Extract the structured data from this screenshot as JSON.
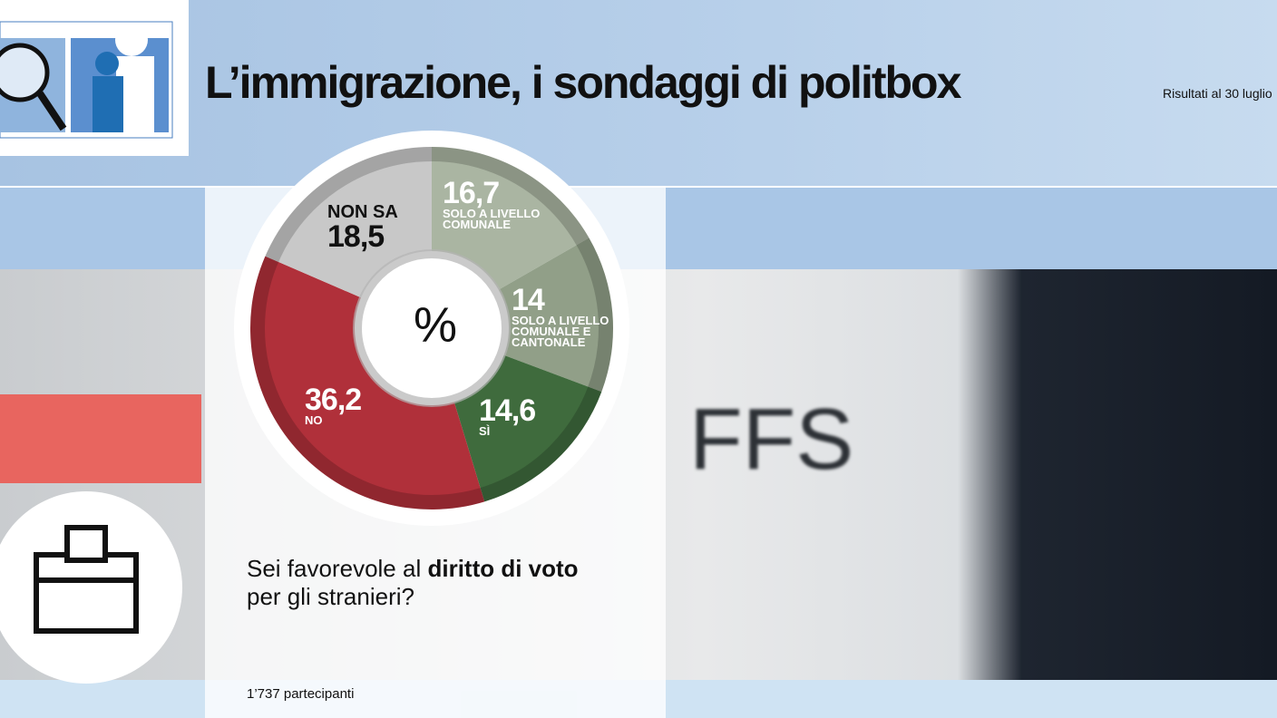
{
  "header": {
    "title": "L’immigrazione, i sondaggi di politbox",
    "subtitle": "Risultati al 30 luglio"
  },
  "background_text": "FFS",
  "chart_data": {
    "type": "pie",
    "center_label": "%",
    "categories": [
      "SOLO A LIVELLO COMUNALE",
      "SOLO A LIVELLO COMUNALE E CANTONALE",
      "SÌ",
      "NO",
      "NON SA"
    ],
    "values": [
      16.7,
      14,
      14.6,
      36.2,
      18.5
    ],
    "value_labels": [
      "16,7",
      "14",
      "14,6",
      "36,2",
      "18,5"
    ],
    "colors": [
      "#aab5a2",
      "#919f88",
      "#3f6b3d",
      "#b0303a",
      "#c8c8c8"
    ]
  },
  "question": [
    "Sei favorevole al",
    "diritto di voto",
    "per gli stranieri?"
  ],
  "footer": "1’737 partecipanti"
}
